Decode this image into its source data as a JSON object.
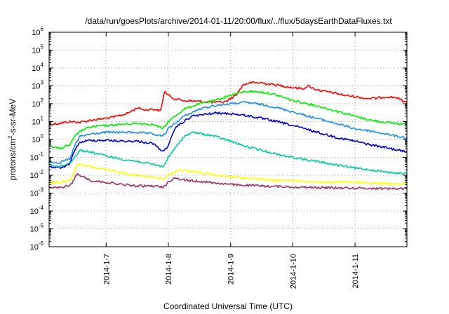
{
  "chart_data": {
    "type": "line",
    "title": "/data/run/goesPlots/archive/2014-01-11/20:00/flux/../flux/5daysEarthDataFluxes.txt",
    "xlabel": "Coordinated Universal Time (UTC)",
    "ylabel_parts": {
      "main": "protons/cm",
      "sup": "2",
      "rest": "-s-sr-MeV"
    },
    "x_scale": "time",
    "y_scale": "log",
    "xlim": [
      "2014-01-06 02:00",
      "2014-01-11 20:00"
    ],
    "ylim": [
      1e-06,
      1000000.0
    ],
    "grid": true,
    "x_ticks": [
      {
        "label": "2014-1-7",
        "value": "2014-01-07 00:00"
      },
      {
        "label": "2014-1-8",
        "value": "2014-01-08 00:00"
      },
      {
        "label": "2014-1-9",
        "value": "2014-01-09 00:00"
      },
      {
        "label": "2014-1-10",
        "value": "2014-01-10 00:00"
      },
      {
        "label": "2014-1-11",
        "value": "2014-01-11 00:00"
      }
    ],
    "y_ticks": [
      {
        "exp": "-6",
        "value": 1e-06
      },
      {
        "exp": "-5",
        "value": 1e-05
      },
      {
        "exp": "-4",
        "value": 0.0001
      },
      {
        "exp": "-3",
        "value": 0.001
      },
      {
        "exp": "-2",
        "value": 0.01
      },
      {
        "exp": "-1",
        "value": 0.1
      },
      {
        "exp": "0",
        "value": 1
      },
      {
        "exp": "1",
        "value": 10
      },
      {
        "exp": "2",
        "value": 100
      },
      {
        "exp": "3",
        "value": 1000
      },
      {
        "exp": "4",
        "value": 10000
      },
      {
        "exp": "5",
        "value": 100000
      },
      {
        "exp": "6",
        "value": 1000000
      }
    ],
    "y_tick_base": "10",
    "series": [
      {
        "color": "#ff0000",
        "points": [
          [
            "2014-01-06 02:00",
            7
          ],
          [
            "2014-01-06 06:00",
            8
          ],
          [
            "2014-01-06 10:00",
            10
          ],
          [
            "2014-01-06 14:00",
            9
          ],
          [
            "2014-01-06 18:00",
            12
          ],
          [
            "2014-01-06 22:00",
            14
          ],
          [
            "2014-01-07 03:00",
            18
          ],
          [
            "2014-01-07 08:00",
            28
          ],
          [
            "2014-01-07 10:00",
            40
          ],
          [
            "2014-01-07 12:00",
            60
          ],
          [
            "2014-01-07 15:00",
            45
          ],
          [
            "2014-01-07 18:00",
            50
          ],
          [
            "2014-01-07 21:00",
            40
          ],
          [
            "2014-01-07 22:30",
            500
          ],
          [
            "2014-01-08 00:00",
            300
          ],
          [
            "2014-01-08 02:00",
            200
          ],
          [
            "2014-01-08 06:00",
            150
          ],
          [
            "2014-01-08 10:00",
            140
          ],
          [
            "2014-01-08 14:00",
            130
          ],
          [
            "2014-01-08 18:00",
            120
          ],
          [
            "2014-01-08 22:00",
            130
          ],
          [
            "2014-01-09 02:00",
            300
          ],
          [
            "2014-01-09 05:00",
            1200
          ],
          [
            "2014-01-09 08:00",
            1500
          ],
          [
            "2014-01-09 12:00",
            1500
          ],
          [
            "2014-01-09 16:00",
            1200
          ],
          [
            "2014-01-09 20:00",
            1000
          ],
          [
            "2014-01-10 00:00",
            800
          ],
          [
            "2014-01-10 04:00",
            700
          ],
          [
            "2014-01-10 06:00",
            1000
          ],
          [
            "2014-01-10 08:00",
            700
          ],
          [
            "2014-01-10 12:00",
            500
          ],
          [
            "2014-01-10 16:00",
            400
          ],
          [
            "2014-01-10 20:00",
            300
          ],
          [
            "2014-01-11 00:00",
            250
          ],
          [
            "2014-01-11 04:00",
            200
          ],
          [
            "2014-01-11 08:00",
            200
          ],
          [
            "2014-01-11 12:00",
            250
          ],
          [
            "2014-01-11 16:00",
            220
          ],
          [
            "2014-01-11 20:00",
            110
          ]
        ]
      },
      {
        "color": "#00ee00",
        "points": [
          [
            "2014-01-06 02:00",
            0.5
          ],
          [
            "2014-01-06 06:00",
            0.3
          ],
          [
            "2014-01-06 10:00",
            0.5
          ],
          [
            "2014-01-06 12:00",
            1.5
          ],
          [
            "2014-01-06 14:00",
            3
          ],
          [
            "2014-01-06 18:00",
            5
          ],
          [
            "2014-01-07 00:00",
            6
          ],
          [
            "2014-01-07 06:00",
            7
          ],
          [
            "2014-01-07 12:00",
            8
          ],
          [
            "2014-01-07 18:00",
            7
          ],
          [
            "2014-01-07 22:00",
            4
          ],
          [
            "2014-01-08 00:00",
            10
          ],
          [
            "2014-01-08 06:00",
            50
          ],
          [
            "2014-01-08 12:00",
            100
          ],
          [
            "2014-01-08 18:00",
            150
          ],
          [
            "2014-01-09 00:00",
            300
          ],
          [
            "2014-01-09 06:00",
            500
          ],
          [
            "2014-01-09 12:00",
            450
          ],
          [
            "2014-01-09 18:00",
            300
          ],
          [
            "2014-01-10 00:00",
            150
          ],
          [
            "2014-01-10 06:00",
            100
          ],
          [
            "2014-01-10 12:00",
            60
          ],
          [
            "2014-01-10 18:00",
            35
          ],
          [
            "2014-01-11 00:00",
            20
          ],
          [
            "2014-01-11 06:00",
            12
          ],
          [
            "2014-01-11 12:00",
            9
          ],
          [
            "2014-01-11 20:00",
            7
          ]
        ]
      },
      {
        "color": "#1e8ce6",
        "points": [
          [
            "2014-01-06 02:00",
            0.06
          ],
          [
            "2014-01-06 06:00",
            0.05
          ],
          [
            "2014-01-06 10:00",
            0.08
          ],
          [
            "2014-01-06 12:00",
            0.5
          ],
          [
            "2014-01-06 14:00",
            1.5
          ],
          [
            "2014-01-06 18:00",
            2
          ],
          [
            "2014-01-07 00:00",
            2.5
          ],
          [
            "2014-01-07 06:00",
            2.5
          ],
          [
            "2014-01-07 12:00",
            2.5
          ],
          [
            "2014-01-07 18:00",
            2
          ],
          [
            "2014-01-07 22:00",
            1.5
          ],
          [
            "2014-01-08 00:00",
            4
          ],
          [
            "2014-01-08 06:00",
            20
          ],
          [
            "2014-01-08 12:00",
            50
          ],
          [
            "2014-01-08 18:00",
            80
          ],
          [
            "2014-01-09 00:00",
            100
          ],
          [
            "2014-01-09 06:00",
            120
          ],
          [
            "2014-01-09 12:00",
            90
          ],
          [
            "2014-01-09 18:00",
            60
          ],
          [
            "2014-01-10 00:00",
            35
          ],
          [
            "2014-01-10 06:00",
            20
          ],
          [
            "2014-01-10 12:00",
            12
          ],
          [
            "2014-01-10 18:00",
            7
          ],
          [
            "2014-01-11 00:00",
            4
          ],
          [
            "2014-01-11 06:00",
            3
          ],
          [
            "2014-01-11 12:00",
            2
          ],
          [
            "2014-01-11 20:00",
            1.2
          ]
        ]
      },
      {
        "color": "#0000cc",
        "points": [
          [
            "2014-01-06 02:00",
            0.03
          ],
          [
            "2014-01-06 06:00",
            0.025
          ],
          [
            "2014-01-06 10:00",
            0.04
          ],
          [
            "2014-01-06 12:00",
            0.3
          ],
          [
            "2014-01-06 14:00",
            0.7
          ],
          [
            "2014-01-06 18:00",
            0.9
          ],
          [
            "2014-01-07 00:00",
            0.9
          ],
          [
            "2014-01-07 06:00",
            0.8
          ],
          [
            "2014-01-07 12:00",
            0.8
          ],
          [
            "2014-01-07 18:00",
            0.6
          ],
          [
            "2014-01-07 22:00",
            0.2
          ],
          [
            "2014-01-08 00:00",
            0.5
          ],
          [
            "2014-01-08 03:00",
            5
          ],
          [
            "2014-01-08 09:00",
            20
          ],
          [
            "2014-01-08 18:00",
            30
          ],
          [
            "2014-01-09 00:00",
            28
          ],
          [
            "2014-01-09 06:00",
            22
          ],
          [
            "2014-01-09 12:00",
            15
          ],
          [
            "2014-01-09 18:00",
            10
          ],
          [
            "2014-01-10 00:00",
            6
          ],
          [
            "2014-01-10 06:00",
            3.5
          ],
          [
            "2014-01-10 12:00",
            2
          ],
          [
            "2014-01-10 18:00",
            1.2
          ],
          [
            "2014-01-11 00:00",
            0.8
          ],
          [
            "2014-01-11 06:00",
            0.5
          ],
          [
            "2014-01-11 12:00",
            0.35
          ],
          [
            "2014-01-11 20:00",
            0.2
          ]
        ]
      },
      {
        "color": "#00c8a0",
        "points": [
          [
            "2014-01-06 02:00",
            0.04
          ],
          [
            "2014-01-06 06:00",
            0.03
          ],
          [
            "2014-01-06 10:00",
            0.05
          ],
          [
            "2014-01-06 14:00",
            0.25
          ],
          [
            "2014-01-06 18:00",
            0.2
          ],
          [
            "2014-01-07 00:00",
            0.12
          ],
          [
            "2014-01-07 06:00",
            0.08
          ],
          [
            "2014-01-07 12:00",
            0.06
          ],
          [
            "2014-01-07 18:00",
            0.04
          ],
          [
            "2014-01-07 22:00",
            0.03
          ],
          [
            "2014-01-08 00:00",
            0.1
          ],
          [
            "2014-01-08 06:00",
            1.5
          ],
          [
            "2014-01-08 10:00",
            2.5
          ],
          [
            "2014-01-08 18:00",
            1.5
          ],
          [
            "2014-01-09 00:00",
            0.8
          ],
          [
            "2014-01-09 06:00",
            0.4
          ],
          [
            "2014-01-09 12:00",
            0.25
          ],
          [
            "2014-01-09 18:00",
            0.15
          ],
          [
            "2014-01-10 00:00",
            0.1
          ],
          [
            "2014-01-10 06:00",
            0.07
          ],
          [
            "2014-01-10 12:00",
            0.05
          ],
          [
            "2014-01-10 18:00",
            0.035
          ],
          [
            "2014-01-11 00:00",
            0.025
          ],
          [
            "2014-01-11 06:00",
            0.02
          ],
          [
            "2014-01-11 12:00",
            0.015
          ],
          [
            "2014-01-11 20:00",
            0.012
          ]
        ]
      },
      {
        "color": "#ffff00",
        "points": [
          [
            "2014-01-06 02:00",
            0.004
          ],
          [
            "2014-01-06 06:00",
            0.004
          ],
          [
            "2014-01-06 10:00",
            0.005
          ],
          [
            "2014-01-06 13:00",
            0.04
          ],
          [
            "2014-01-06 18:00",
            0.03
          ],
          [
            "2014-01-07 00:00",
            0.02
          ],
          [
            "2014-01-07 06:00",
            0.014
          ],
          [
            "2014-01-07 12:00",
            0.01
          ],
          [
            "2014-01-07 18:00",
            0.008
          ],
          [
            "2014-01-07 22:00",
            0.006
          ],
          [
            "2014-01-08 00:00",
            0.01
          ],
          [
            "2014-01-08 04:00",
            0.02
          ],
          [
            "2014-01-08 12:00",
            0.015
          ],
          [
            "2014-01-08 18:00",
            0.01
          ],
          [
            "2014-01-09 00:00",
            0.008
          ],
          [
            "2014-01-09 06:00",
            0.007
          ],
          [
            "2014-01-09 12:00",
            0.006
          ],
          [
            "2014-01-09 18:00",
            0.005
          ],
          [
            "2014-01-10 00:00",
            0.005
          ],
          [
            "2014-01-10 12:00",
            0.004
          ],
          [
            "2014-01-11 00:00",
            0.004
          ],
          [
            "2014-01-11 12:00",
            0.0035
          ],
          [
            "2014-01-11 20:00",
            0.0035
          ]
        ]
      },
      {
        "color": "#993366",
        "points": [
          [
            "2014-01-06 02:00",
            0.002
          ],
          [
            "2014-01-06 06:00",
            0.002
          ],
          [
            "2014-01-06 10:00",
            0.0025
          ],
          [
            "2014-01-06 13:00",
            0.012
          ],
          [
            "2014-01-06 18:00",
            0.005
          ],
          [
            "2014-01-07 00:00",
            0.004
          ],
          [
            "2014-01-07 06:00",
            0.003
          ],
          [
            "2014-01-07 12:00",
            0.0025
          ],
          [
            "2014-01-07 18:00",
            0.0025
          ],
          [
            "2014-01-07 22:00",
            0.0022
          ],
          [
            "2014-01-08 00:00",
            0.004
          ],
          [
            "2014-01-08 02:00",
            0.007
          ],
          [
            "2014-01-08 08:00",
            0.005
          ],
          [
            "2014-01-08 16:00",
            0.004
          ],
          [
            "2014-01-09 00:00",
            0.003
          ],
          [
            "2014-01-09 12:00",
            0.0025
          ],
          [
            "2014-01-10 00:00",
            0.0022
          ],
          [
            "2014-01-10 12:00",
            0.002
          ],
          [
            "2014-01-11 00:00",
            0.0019
          ],
          [
            "2014-01-11 12:00",
            0.0018
          ],
          [
            "2014-01-11 20:00",
            0.0018
          ]
        ]
      }
    ]
  }
}
